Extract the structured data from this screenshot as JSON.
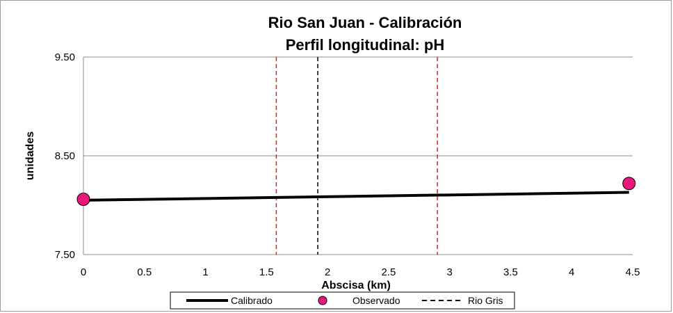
{
  "chart_data": {
    "type": "line",
    "title": "Rio San Juan  - Calibración",
    "subtitle": "Perfil longitudinal: pH",
    "xlabel": "Abscisa (km)",
    "ylabel": "unidades",
    "xlim": [
      0,
      4.5
    ],
    "ylim": [
      7.5,
      9.5
    ],
    "x_ticks": [
      "0",
      "0.5",
      "1",
      "1.5",
      "2",
      "2.5",
      "3",
      "3.5",
      "4",
      "4.5"
    ],
    "y_ticks": [
      "7.50",
      "8.50",
      "9.50"
    ],
    "grid": "horizontal",
    "legend_position": "bottom",
    "series": [
      {
        "name": "Calibrado",
        "kind": "line",
        "color": "#000000",
        "x": [
          0,
          4.47
        ],
        "y": [
          8.05,
          8.13
        ]
      },
      {
        "name": "Observado",
        "kind": "markers",
        "color": "#e8177a",
        "x": [
          0,
          4.47
        ],
        "y": [
          8.06,
          8.22
        ]
      }
    ],
    "vertical_lines": [
      {
        "x": 1.58,
        "color": "#e02020",
        "style": "dashed"
      },
      {
        "name": "Rio Gris",
        "x": 1.92,
        "color": "#000000",
        "style": "dashed"
      },
      {
        "x": 2.9,
        "color": "#e02020",
        "style": "dashed"
      }
    ]
  }
}
